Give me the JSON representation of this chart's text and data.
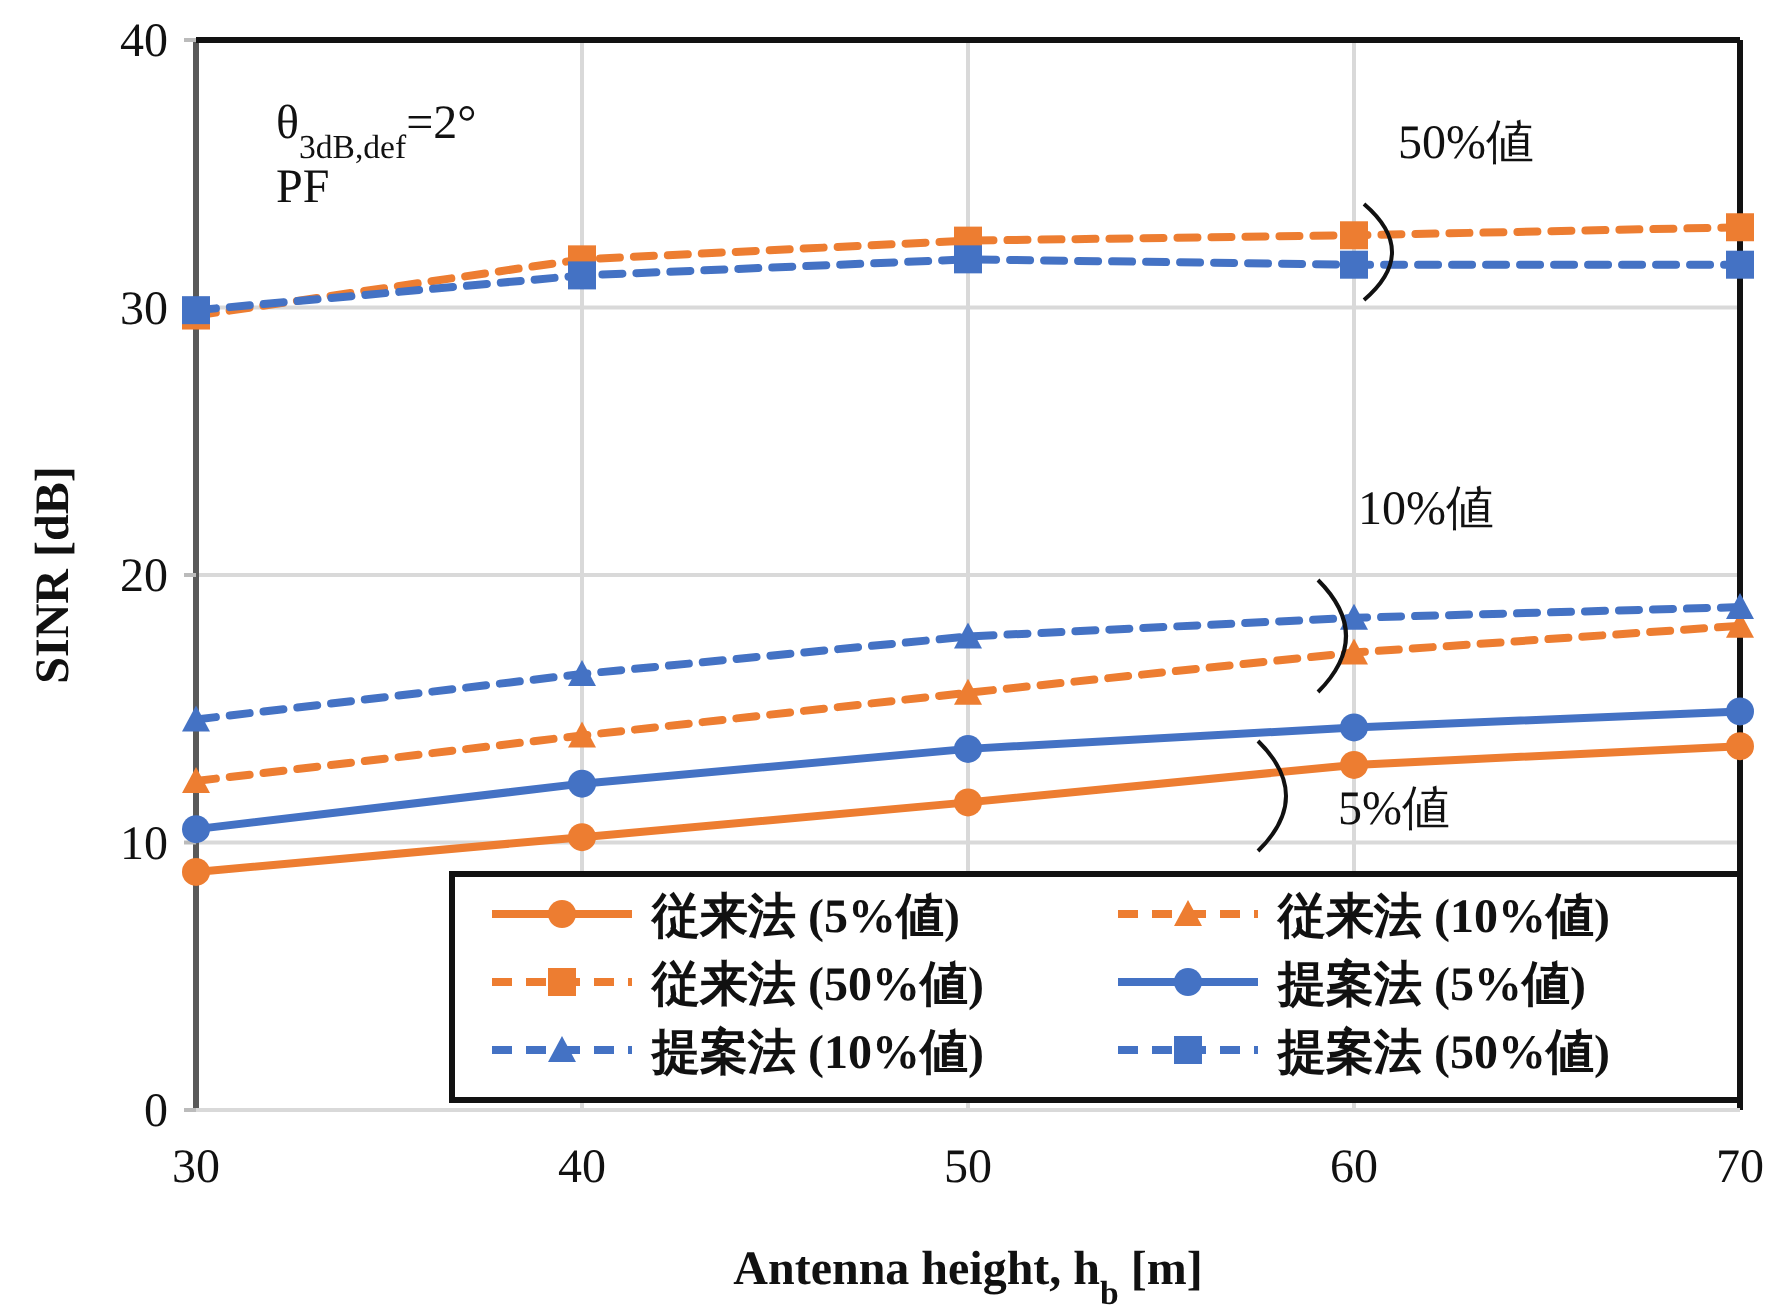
{
  "chart_data": {
    "type": "line",
    "xlabel": "Antenna height, h$_{b}$ [m]",
    "ylabel": "SINR [dB]",
    "x": [
      30,
      40,
      50,
      60,
      70
    ],
    "xlim": [
      30,
      70
    ],
    "xticks": [
      30,
      40,
      50,
      60,
      70
    ],
    "ylim": [
      0,
      40
    ],
    "yticks": [
      0,
      10,
      20,
      30,
      40
    ],
    "grid": true,
    "legend": "bottom right",
    "series": [
      {
        "name": "従来法 (5%値)",
        "color": "#ed7d31",
        "marker": "circle",
        "line_style": "solid",
        "values": [
          8.9,
          10.2,
          11.5,
          12.9,
          13.6
        ]
      },
      {
        "name": "従来法 (10%値)",
        "color": "#ed7d31",
        "marker": "triangle",
        "line_style": "dashed",
        "values": [
          12.3,
          14.0,
          15.6,
          17.1,
          18.1
        ]
      },
      {
        "name": "従来法 (50%値)",
        "color": "#ed7d31",
        "marker": "square",
        "line_style": "dashed",
        "values": [
          29.7,
          31.8,
          32.5,
          32.7,
          33.0
        ]
      },
      {
        "name": "提案法 (5%値)",
        "color": "#4472c4",
        "marker": "circle",
        "line_style": "solid",
        "values": [
          10.5,
          12.2,
          13.5,
          14.3,
          14.9
        ]
      },
      {
        "name": "提案法 (10%値)",
        "color": "#4472c4",
        "marker": "triangle",
        "line_style": "dashed",
        "values": [
          14.6,
          16.3,
          17.7,
          18.4,
          18.8
        ]
      },
      {
        "name": "提案法 (50%値)",
        "color": "#4472c4",
        "marker": "square",
        "line_style": "dashed",
        "values": [
          29.9,
          31.2,
          31.8,
          31.6,
          31.6
        ]
      }
    ],
    "annotations": [
      "θ$_{3dB,def}$=2°",
      "PF",
      "50%値",
      "10%値",
      "5%値"
    ]
  }
}
